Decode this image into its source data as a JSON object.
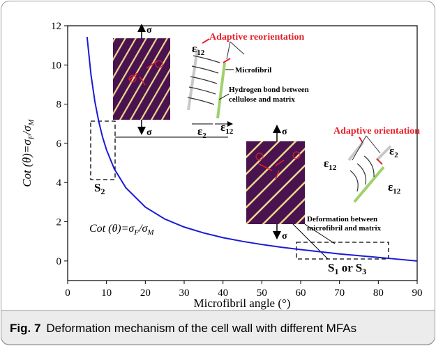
{
  "chart_data": {
    "type": "line",
    "x_label": "Microfibril angle (°)",
    "y_label": [
      "Cot (θ)=σ",
      "F",
      "/σ",
      "M"
    ],
    "x": [
      5,
      6,
      7,
      8,
      9,
      10,
      12,
      15,
      20,
      25,
      30,
      35,
      40,
      45,
      50,
      55,
      60,
      65,
      70,
      75,
      80,
      85,
      90
    ],
    "values": [
      11.43,
      9.51,
      8.14,
      7.12,
      6.31,
      5.67,
      4.7,
      3.73,
      2.75,
      2.14,
      1.73,
      1.43,
      1.19,
      1.0,
      0.84,
      0.7,
      0.58,
      0.47,
      0.36,
      0.27,
      0.18,
      0.09,
      0
    ],
    "color": "#1a1ad8",
    "xlim": [
      0,
      90
    ],
    "xticks": [
      0,
      10,
      20,
      30,
      40,
      50,
      60,
      70,
      80,
      90
    ],
    "ylim": [
      -1,
      12
    ],
    "yticks": [
      0,
      2,
      4,
      6,
      8,
      10,
      12
    ],
    "annotations": {
      "curve_label": [
        "Cot (θ)=σ",
        "F",
        "/σ",
        "M"
      ],
      "sigma": "σ",
      "adaptive_reorientation": "Adaptive reorientation",
      "microfibril": "Microfibril",
      "hydrogen_bond": [
        "Hydrogen bond between",
        "cellulose and matrix"
      ],
      "epsilon": "ε",
      "sub12": "12",
      "sub2": "2",
      "adaptive_orientation": "Adaptive orientation",
      "deformation": [
        "Deformation between",
        "microfibril and matrix"
      ],
      "s2": [
        "S",
        "2"
      ],
      "s13": [
        "S",
        "1",
        " or S",
        "3"
      ]
    }
  },
  "caption": {
    "label": "Fig. 7",
    "text": "Deformation mechanism of the cell wall with different MFAs"
  }
}
